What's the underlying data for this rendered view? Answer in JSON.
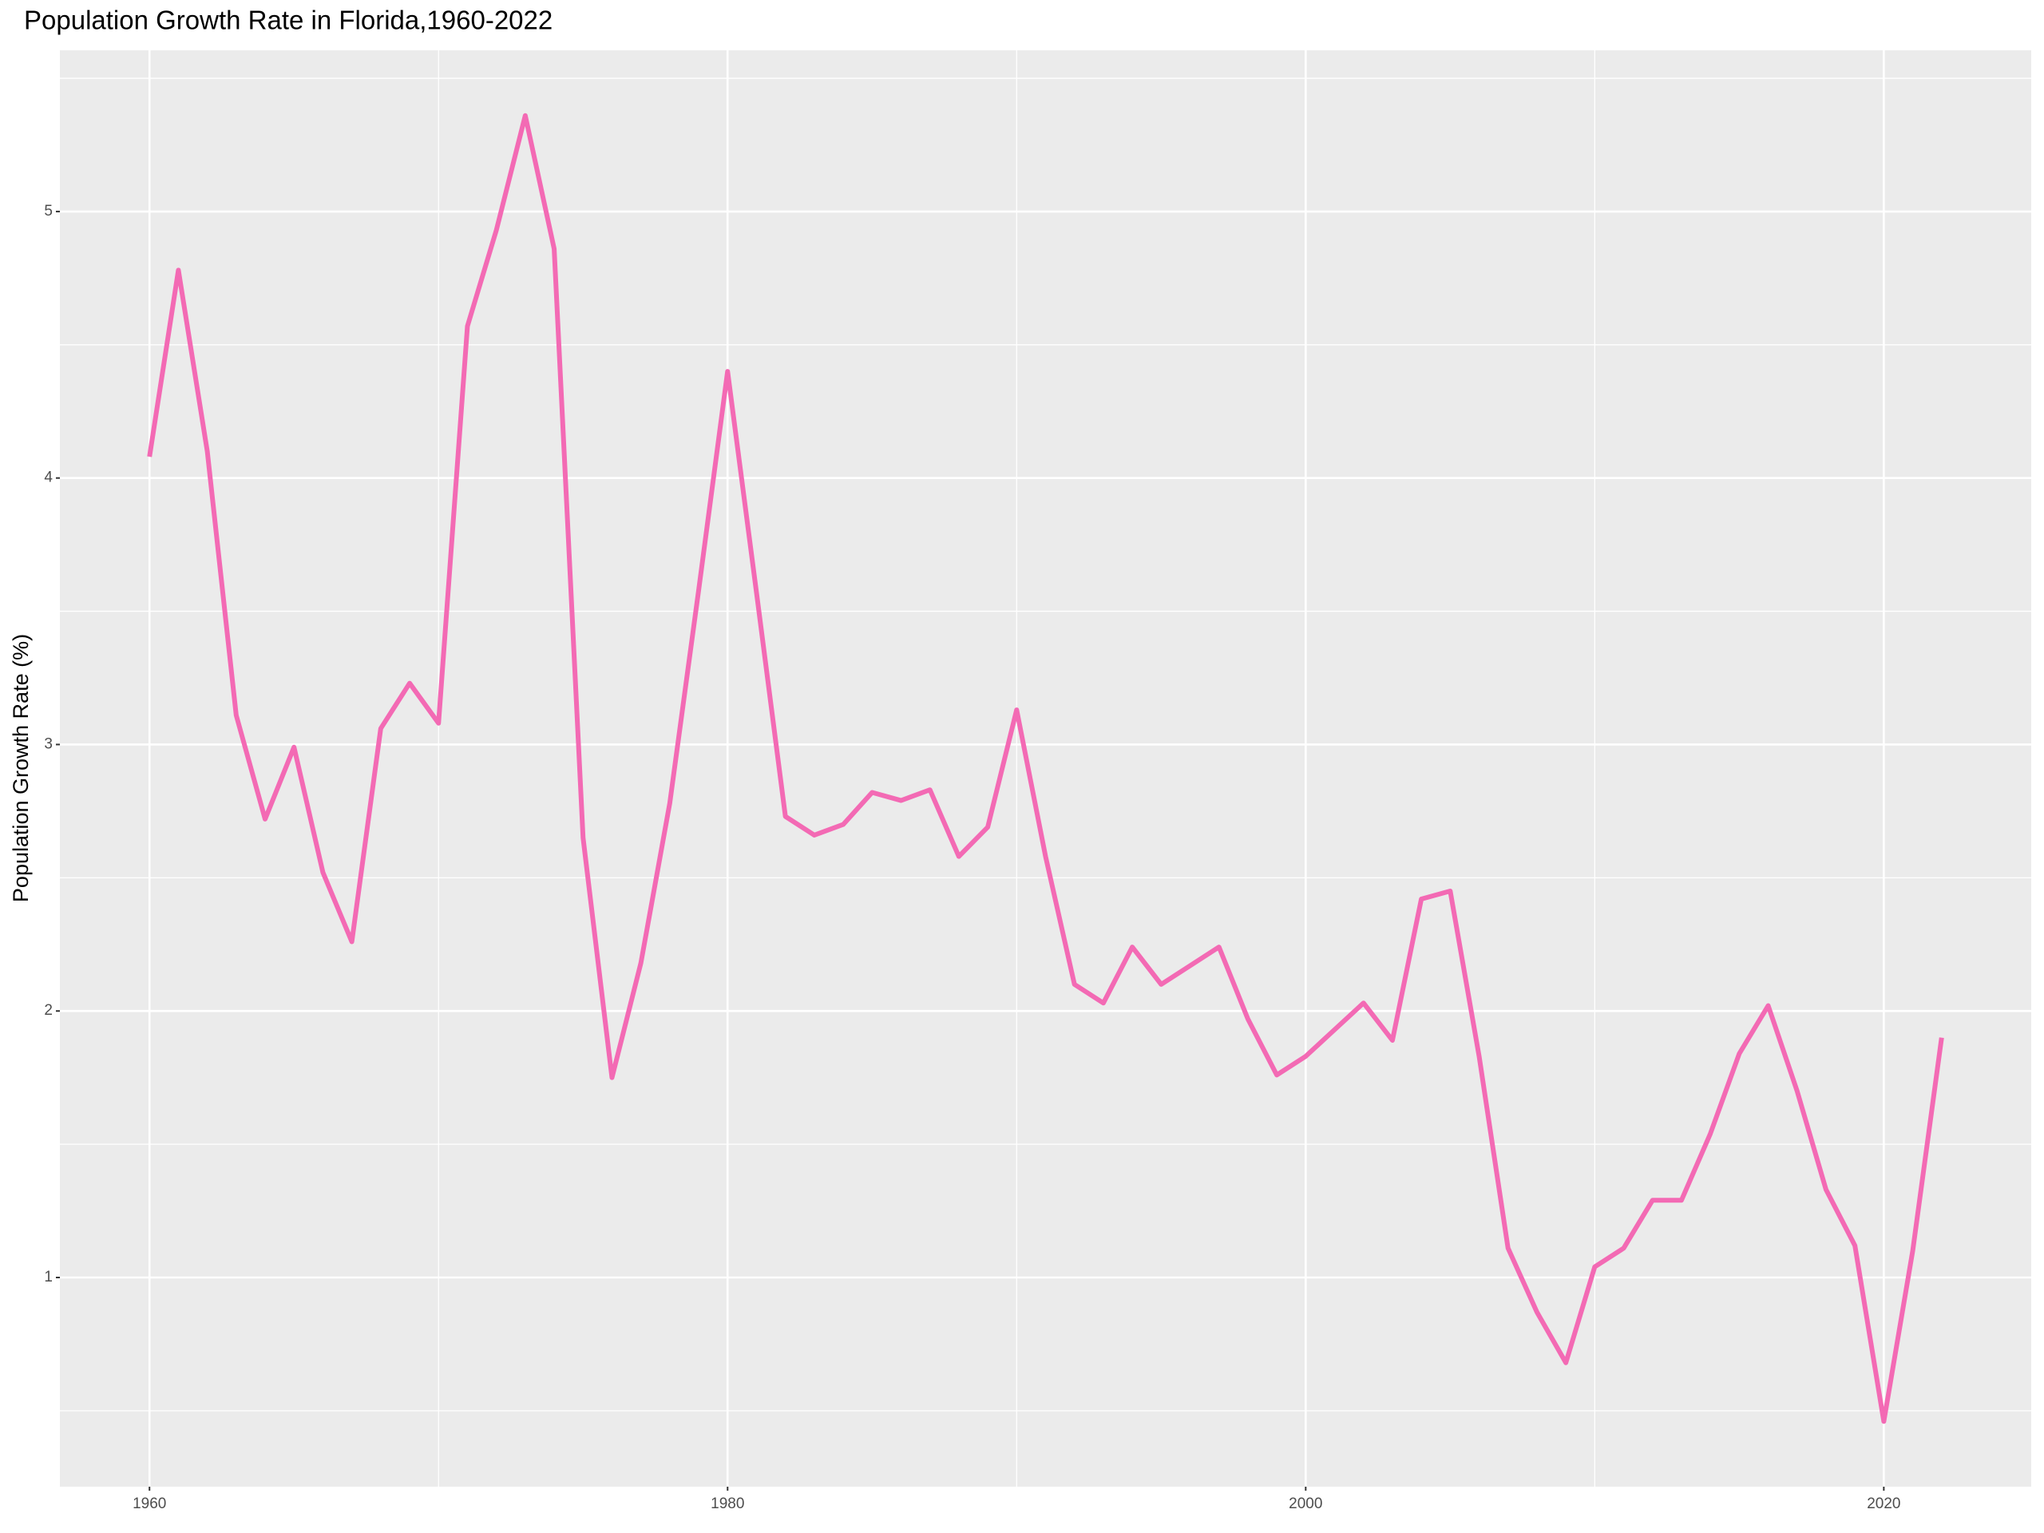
{
  "chart_data": {
    "type": "line",
    "title": "Population Growth Rate in Florida,1960-2022",
    "y_label": "Population Growth Rate (%)",
    "x": [
      1960,
      1961,
      1962,
      1963,
      1964,
      1965,
      1966,
      1967,
      1968,
      1969,
      1970,
      1971,
      1972,
      1973,
      1974,
      1975,
      1976,
      1977,
      1978,
      1979,
      1980,
      1981,
      1982,
      1983,
      1984,
      1985,
      1986,
      1987,
      1988,
      1989,
      1990,
      1991,
      1992,
      1993,
      1994,
      1995,
      1996,
      1997,
      1998,
      1999,
      2000,
      2001,
      2002,
      2003,
      2004,
      2005,
      2006,
      2007,
      2008,
      2009,
      2010,
      2011,
      2012,
      2013,
      2014,
      2015,
      2016,
      2017,
      2018,
      2019,
      2020,
      2021,
      2022
    ],
    "series": [
      {
        "color": "#f36ab4",
        "values": [
          4.08,
          4.78,
          4.1,
          3.11,
          2.72,
          2.99,
          2.52,
          2.26,
          3.06,
          3.23,
          3.08,
          4.57,
          4.93,
          5.36,
          4.86,
          2.65,
          1.75,
          2.18,
          2.78,
          3.58,
          4.4,
          3.57,
          2.73,
          2.66,
          2.7,
          2.82,
          2.79,
          2.83,
          2.58,
          2.69,
          3.13,
          2.58,
          2.1,
          2.03,
          2.24,
          2.1,
          2.17,
          2.24,
          1.97,
          1.76,
          1.83,
          1.93,
          2.03,
          1.89,
          2.42,
          2.45,
          1.83,
          1.11,
          0.87,
          0.68,
          1.04,
          1.11,
          1.29,
          1.29,
          1.54,
          1.84,
          2.02,
          1.7,
          1.33,
          1.12,
          0.46,
          1.1,
          1.9
        ]
      }
    ],
    "xlim": [
      1956.9,
      2025.1
    ],
    "ylim": [
      0.215,
      5.605
    ],
    "xticks": [
      1960,
      1980,
      2000,
      2020
    ],
    "yticks": [
      1,
      2,
      3,
      4,
      5
    ],
    "x_minor_ticks": [
      1970,
      1990,
      2010
    ],
    "y_minor_ticks": [
      0.5,
      1.5,
      2.5,
      3.5,
      4.5,
      5.5
    ],
    "grid": true
  }
}
